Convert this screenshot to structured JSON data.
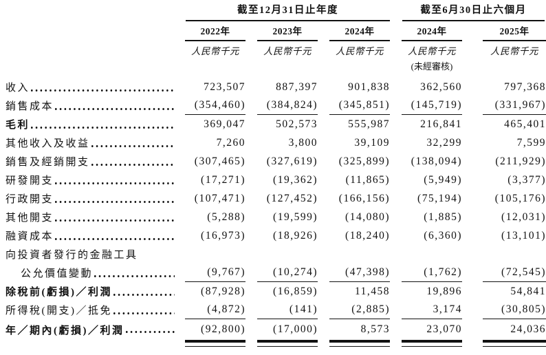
{
  "table": {
    "groups": [
      {
        "title": "截至12月31日止年度"
      },
      {
        "title": "截至6月30日止六個月"
      }
    ],
    "columns": [
      {
        "year": "2022年",
        "unit": "人民幣千元",
        "note": ""
      },
      {
        "year": "2023年",
        "unit": "人民幣千元",
        "note": ""
      },
      {
        "year": "2024年",
        "unit": "人民幣千元",
        "note": ""
      },
      {
        "year": "2024年",
        "unit": "人民幣千元",
        "note": "(未經審核)"
      },
      {
        "year": "2025年",
        "unit": "人民幣千元",
        "note": ""
      }
    ],
    "rows": [
      {
        "label": "收入",
        "values": [
          "723,507",
          "887,397",
          "901,838",
          "362,560",
          "797,368"
        ]
      },
      {
        "label": "銷售成本",
        "values": [
          "(354,460)",
          "(384,824)",
          "(345,851)",
          "(145,719)",
          "(331,967)"
        ],
        "rule": "single"
      },
      {
        "label": "毛利",
        "bold": true,
        "values": [
          "369,047",
          "502,573",
          "555,987",
          "216,841",
          "465,401"
        ]
      },
      {
        "label": "其他收入及收益",
        "values": [
          "7,260",
          "3,800",
          "39,109",
          "32,299",
          "7,599"
        ]
      },
      {
        "label": "銷售及經銷開支",
        "values": [
          "(307,465)",
          "(327,619)",
          "(325,899)",
          "(138,094)",
          "(211,929)"
        ]
      },
      {
        "label": "研發開支",
        "values": [
          "(17,271)",
          "(19,362)",
          "(11,865)",
          "(5,949)",
          "(3,377)"
        ]
      },
      {
        "label": "行政開支",
        "values": [
          "(107,471)",
          "(127,452)",
          "(166,156)",
          "(75,194)",
          "(105,176)"
        ]
      },
      {
        "label": "其他開支",
        "values": [
          "(5,288)",
          "(19,599)",
          "(14,080)",
          "(1,885)",
          "(12,031)"
        ]
      },
      {
        "label": "融資成本",
        "values": [
          "(16,973)",
          "(18,926)",
          "(18,240)",
          "(6,360)",
          "(13,101)"
        ]
      },
      {
        "label": "向投資者發行的金融工具",
        "values": null
      },
      {
        "label": "公允價值變動",
        "indent": true,
        "values": [
          "(9,767)",
          "(10,274)",
          "(47,398)",
          "(1,762)",
          "(72,545)"
        ],
        "rule": "single"
      },
      {
        "label": "除稅前(虧損)／利潤",
        "bold": true,
        "values": [
          "(87,928)",
          "(16,859)",
          "11,458",
          "19,896",
          "54,841"
        ]
      },
      {
        "label": "所得稅(開支)／抵免",
        "values": [
          "(4,872)",
          "(141)",
          "(2,885)",
          "3,174",
          "(30,805)"
        ],
        "rule": "single"
      },
      {
        "label": "年／期內(虧損)／利潤",
        "bold": true,
        "values": [
          "(92,800)",
          "(17,000)",
          "8,573",
          "23,070",
          "24,036"
        ],
        "rule": "double"
      }
    ]
  }
}
